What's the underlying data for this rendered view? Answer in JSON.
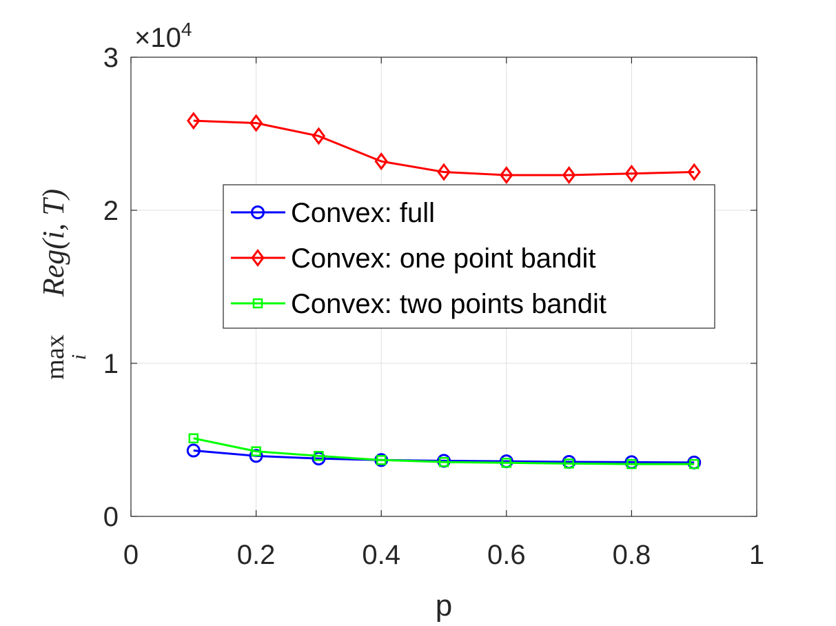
{
  "chart_data": {
    "type": "line",
    "xlabel": "p",
    "ylabel": {
      "operator": "max",
      "subscript": "i",
      "expression": "Reg(i, T)"
    },
    "y_exponent_label": "×10",
    "y_exponent": "4",
    "xlim": [
      0,
      1
    ],
    "ylim": [
      0,
      30000
    ],
    "x_ticks": [
      0,
      0.2,
      0.4,
      0.6,
      0.8,
      1
    ],
    "x_tick_labels": [
      "0",
      "0.2",
      "0.4",
      "0.6",
      "0.8",
      "1"
    ],
    "y_ticks": [
      0,
      10000,
      20000,
      30000
    ],
    "y_tick_labels": [
      "0",
      "1",
      "2",
      "3"
    ],
    "grid": true,
    "legend_position": "center",
    "x": [
      0.1,
      0.2,
      0.3,
      0.4,
      0.5,
      0.6,
      0.7,
      0.8,
      0.9
    ],
    "series": [
      {
        "name": "Convex: full",
        "color": "#0000ff",
        "marker": "circle",
        "values": [
          4300,
          3950,
          3780,
          3680,
          3630,
          3600,
          3560,
          3540,
          3520
        ]
      },
      {
        "name": "Convex: one point bandit",
        "color": "#ff0000",
        "marker": "diamond",
        "values": [
          25850,
          25700,
          24850,
          23200,
          22500,
          22300,
          22300,
          22400,
          22500
        ]
      },
      {
        "name": "Convex: two points bandit",
        "color": "#00ff00",
        "marker": "square",
        "values": [
          5100,
          4250,
          3950,
          3680,
          3550,
          3500,
          3450,
          3420,
          3420
        ]
      }
    ]
  }
}
